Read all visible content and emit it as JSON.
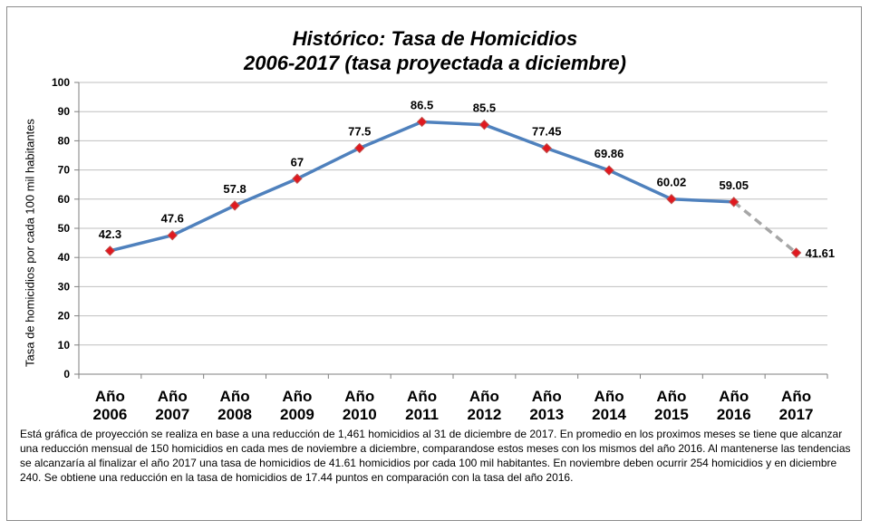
{
  "chart_data": {
    "type": "line",
    "title": "Histórico: Tasa de Homicidios",
    "subtitle": "2006-2017 (tasa proyectada a diciembre)",
    "ylabel": "Tasa de homicidios por cada 100 mil habitantes",
    "xlabel": "",
    "ylim": [
      0,
      100
    ],
    "yticks": [
      "0",
      "10",
      "20",
      "30",
      "40",
      "50",
      "60",
      "70",
      "80",
      "90",
      "100"
    ],
    "categories": [
      [
        "Año",
        "2006"
      ],
      [
        "Año",
        "2007"
      ],
      [
        "Año",
        "2008"
      ],
      [
        "Año",
        "2009"
      ],
      [
        "Año",
        "2010"
      ],
      [
        "Año",
        "2011"
      ],
      [
        "Año",
        "2012"
      ],
      [
        "Año",
        "2013"
      ],
      [
        "Año",
        "2014"
      ],
      [
        "Año",
        "2015"
      ],
      [
        "Año",
        "2016"
      ],
      [
        "Año",
        "2017"
      ]
    ],
    "values": [
      42.3,
      47.6,
      57.8,
      67,
      77.5,
      86.5,
      85.5,
      77.45,
      69.86,
      60.02,
      59.05,
      41.61
    ],
    "labels": [
      "42.3",
      "47.6",
      "57.8",
      "67",
      "77.5",
      "86.5",
      "85.5",
      "77.45",
      "69.86",
      "60.02",
      "59.05",
      "41.61"
    ],
    "projected_from_index": 10,
    "grid": true,
    "colors": {
      "line": "#4f81bd",
      "projected": "#a6a6a6",
      "marker": "#e0181f",
      "marker_edge": "#c0504d",
      "grid": "#bfbfbf"
    }
  },
  "footnote": "Está gráfica de proyección se realiza en base a una reducción de  1,461 homicidios al 31 de diciembre de 2017. En promedio en los proximos meses se tiene que alcanzar una reducción mensual de 150 homicidios en cada mes de noviembre a diciembre, comparandose estos meses con los mismos del año 2016. Al mantenerse las tendencias  se alcanzaría al finalizar el año 2017 una tasa de homicidios de 41.61 homicidios  por cada 100 mil habitantes. En noviembre deben ocurrir  254  homicidios y en diciembre 240. Se obtiene una reducción en la tasa de homicidios de 17.44 puntos en comparación con la tasa del año 2016."
}
